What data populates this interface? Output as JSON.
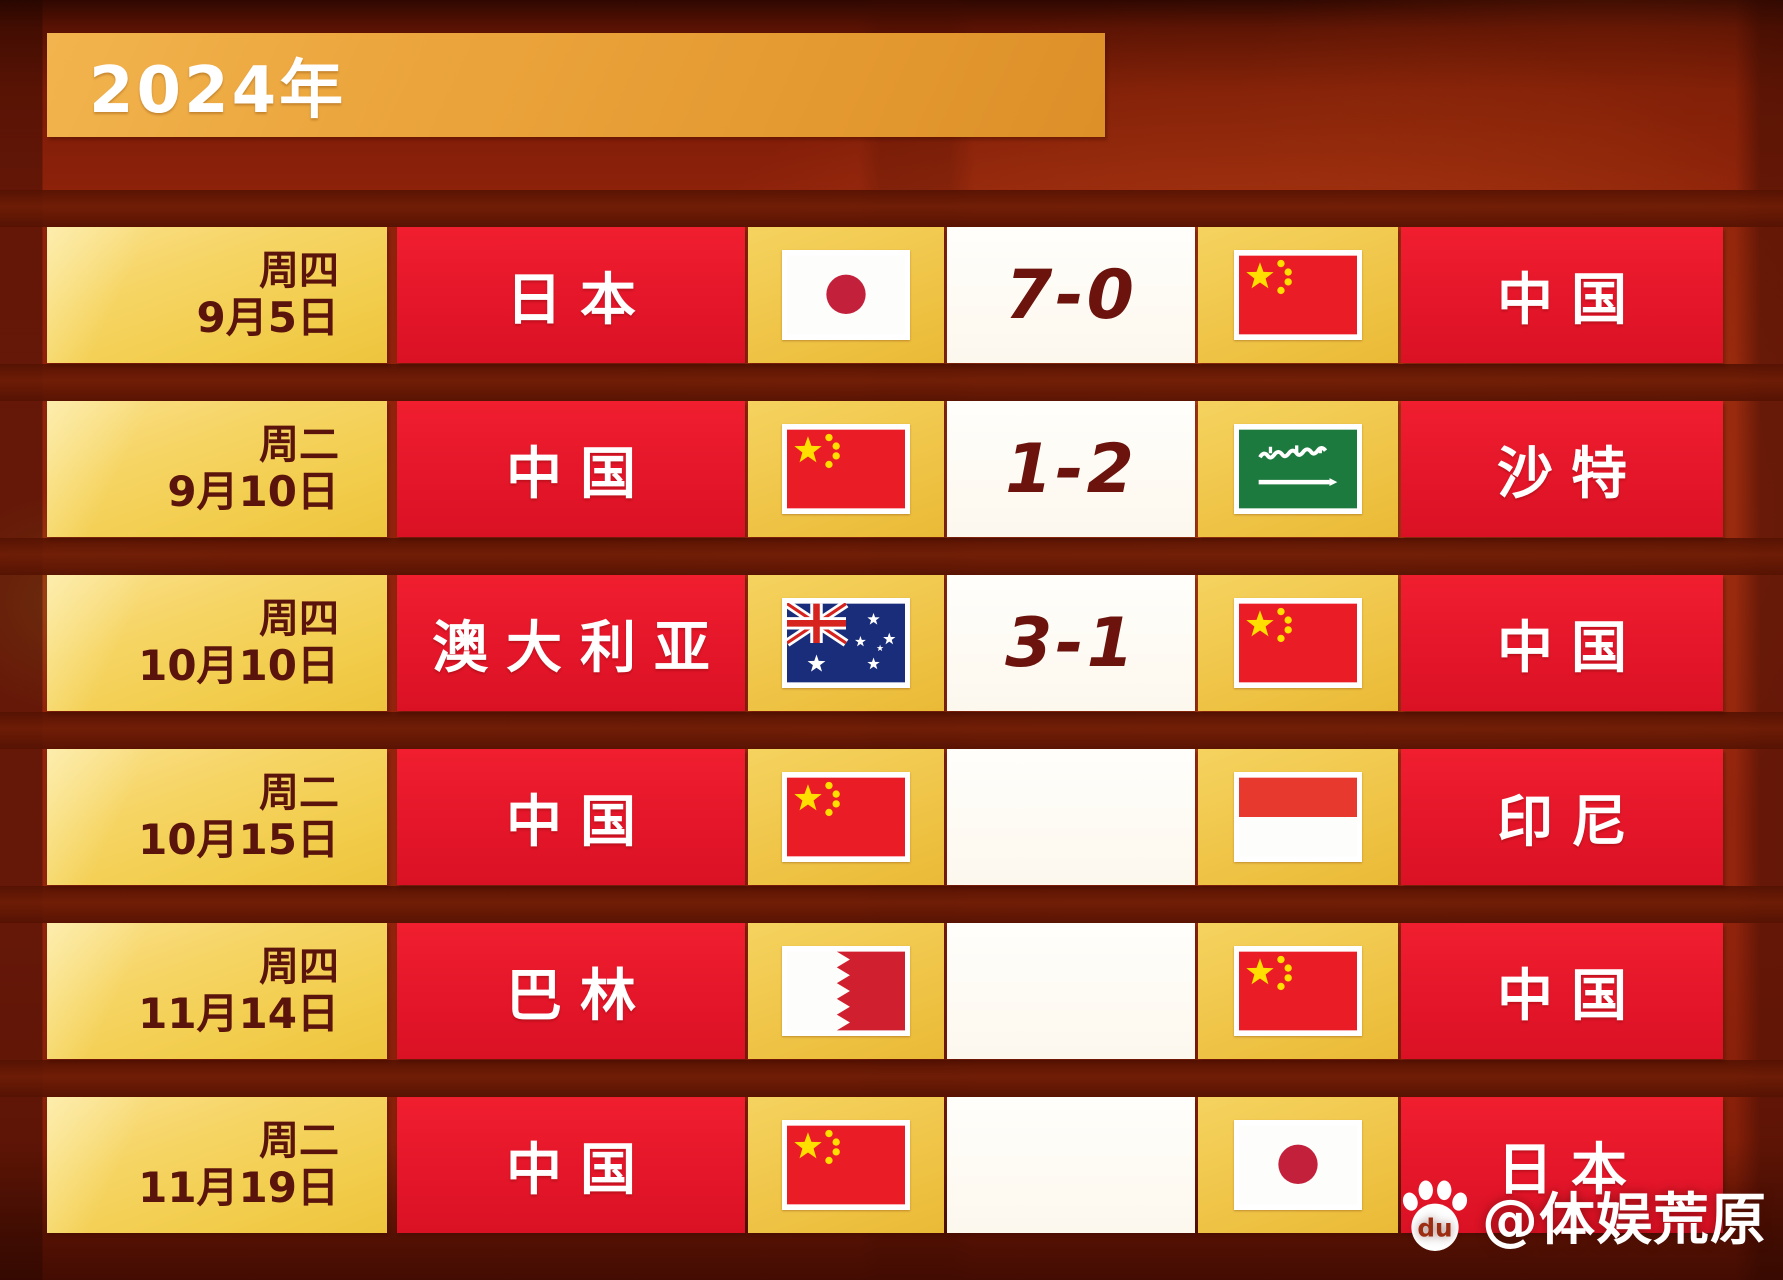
{
  "title": "2024年",
  "watermark": {
    "handle": "@体娱荒原",
    "icon": "baidu-paw-icon",
    "icon_label": "du"
  },
  "colors": {
    "background_red": "#93240d",
    "divider_brown": "#6b1b05",
    "banner_gold": "#e9a238",
    "date_yellow": "#f5d258",
    "team_red": "#e91a2b",
    "score_white": "#fffdf7",
    "date_text": "#5a140b",
    "score_text": "#6b130c"
  },
  "schedule": {
    "rows": [
      {
        "weekday": "周四",
        "date": "9月5日",
        "home_team": "日本",
        "home_flag": "japan-flag",
        "score": "7-0",
        "away_flag": "china-flag",
        "away_team": "中国"
      },
      {
        "weekday": "周二",
        "date": "9月10日",
        "home_team": "中国",
        "home_flag": "china-flag",
        "score": "1-2",
        "away_flag": "saudi-arabia-flag",
        "away_team": "沙特"
      },
      {
        "weekday": "周四",
        "date": "10月10日",
        "home_team": "澳大利亚",
        "home_flag": "australia-flag",
        "score": "3-1",
        "away_flag": "china-flag",
        "away_team": "中国"
      },
      {
        "weekday": "周二",
        "date": "10月15日",
        "home_team": "中国",
        "home_flag": "china-flag",
        "score": "",
        "away_flag": "indonesia-flag",
        "away_team": "印尼"
      },
      {
        "weekday": "周四",
        "date": "11月14日",
        "home_team": "巴林",
        "home_flag": "bahrain-flag",
        "score": "",
        "away_flag": "china-flag",
        "away_team": "中国"
      },
      {
        "weekday": "周二",
        "date": "11月19日",
        "home_team": "中国",
        "home_flag": "china-flag",
        "score": "",
        "away_flag": "japan-flag",
        "away_team": "日本"
      }
    ]
  },
  "chart_data": {
    "type": "table",
    "title": "2024年",
    "columns": [
      "weekday",
      "date",
      "home_team",
      "score",
      "away_team"
    ],
    "rows": [
      [
        "周四",
        "9月5日",
        "日本",
        "7-0",
        "中国"
      ],
      [
        "周二",
        "9月10日",
        "中国",
        "1-2",
        "沙特"
      ],
      [
        "周四",
        "10月10日",
        "澳大利亚",
        "3-1",
        "中国"
      ],
      [
        "周二",
        "10月15日",
        "中国",
        "",
        "印尼"
      ],
      [
        "周四",
        "11月14日",
        "巴林",
        "",
        "中国"
      ],
      [
        "周二",
        "11月19日",
        "中国",
        "",
        "日本"
      ]
    ]
  }
}
